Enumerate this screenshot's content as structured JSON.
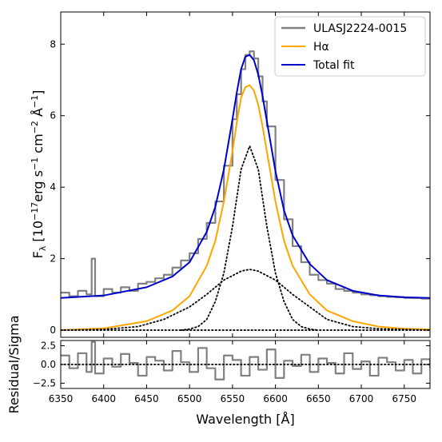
{
  "chart_data": [
    {
      "panel": "main",
      "type": "line",
      "xlabel": "",
      "ylabel_parts": {
        "F": "F",
        "F_sub": "λ",
        "open": " [10",
        "exp1": "−17",
        "erg": "erg s",
        "exp2": "−1",
        "cm": " cm",
        "exp3": "−2",
        "A": " Å",
        "exp4": "−1",
        "close": "]"
      },
      "xlim": [
        6350,
        6780
      ],
      "ylim": [
        -0.2,
        8.9
      ],
      "xticks": [
        6350,
        6400,
        6450,
        6500,
        6550,
        6600,
        6650,
        6700,
        6750
      ],
      "yticks": [
        0,
        2,
        4,
        6,
        8
      ],
      "ytick_labels": [
        "0",
        "2",
        "4",
        "6",
        "8"
      ],
      "legend": {
        "placement": "top-right",
        "entries": [
          {
            "label": "ULASJ2224-0015",
            "color": "#808080"
          },
          {
            "label": "Hα",
            "color": "#FFA500"
          },
          {
            "label": "Total fit",
            "color": "#0000CD"
          }
        ]
      },
      "series": [
        {
          "name": "ULASJ2224-0015",
          "style": "step",
          "color": "#808080",
          "x": [
            6350,
            6360,
            6370,
            6380,
            6386,
            6390,
            6400,
            6410,
            6420,
            6430,
            6440,
            6450,
            6460,
            6470,
            6480,
            6490,
            6500,
            6510,
            6520,
            6530,
            6540,
            6550,
            6555,
            6560,
            6565,
            6570,
            6575,
            6580,
            6585,
            6590,
            6600,
            6610,
            6620,
            6630,
            6640,
            6650,
            6660,
            6670,
            6680,
            6690,
            6700,
            6710,
            6720,
            6730,
            6740,
            6750,
            6760,
            6770,
            6780
          ],
          "y": [
            1.05,
            0.95,
            1.1,
            1.0,
            2.0,
            0.95,
            1.15,
            1.05,
            1.2,
            1.1,
            1.3,
            1.35,
            1.45,
            1.55,
            1.75,
            1.95,
            2.15,
            2.55,
            3.0,
            3.6,
            4.6,
            5.9,
            6.6,
            7.3,
            7.7,
            7.8,
            7.6,
            7.1,
            6.4,
            5.7,
            4.2,
            3.1,
            2.35,
            1.9,
            1.55,
            1.4,
            1.3,
            1.15,
            1.1,
            1.05,
            1.0,
            0.98,
            0.95,
            0.93,
            0.92,
            0.9,
            0.9,
            0.88,
            0.88
          ]
        },
        {
          "name": "Hα",
          "style": "line",
          "color": "#FFA500",
          "x": [
            6350,
            6400,
            6450,
            6480,
            6500,
            6520,
            6530,
            6540,
            6550,
            6555,
            6560,
            6565,
            6570,
            6575,
            6580,
            6585,
            6590,
            6600,
            6610,
            6620,
            6640,
            6660,
            6690,
            6720,
            6750,
            6780
          ],
          "y": [
            0.0,
            0.05,
            0.25,
            0.55,
            0.95,
            1.8,
            2.5,
            3.6,
            5.0,
            5.8,
            6.5,
            6.8,
            6.85,
            6.7,
            6.3,
            5.7,
            5.0,
            3.6,
            2.5,
            1.8,
            1.0,
            0.55,
            0.25,
            0.1,
            0.04,
            0.02
          ]
        },
        {
          "name": "Total fit",
          "style": "line",
          "color": "#0000CD",
          "x": [
            6350,
            6400,
            6450,
            6480,
            6500,
            6520,
            6530,
            6540,
            6550,
            6555,
            6560,
            6565,
            6570,
            6575,
            6580,
            6585,
            6590,
            6600,
            6610,
            6620,
            6640,
            6660,
            6690,
            6720,
            6750,
            6780
          ],
          "y": [
            0.9,
            0.97,
            1.2,
            1.5,
            1.9,
            2.75,
            3.45,
            4.5,
            5.9,
            6.65,
            7.3,
            7.65,
            7.7,
            7.55,
            7.15,
            6.55,
            5.85,
            4.45,
            3.35,
            2.65,
            1.85,
            1.4,
            1.1,
            0.97,
            0.92,
            0.9
          ]
        },
        {
          "name": "",
          "style": "dotted",
          "color": "#000000",
          "x": [
            6490,
            6500,
            6510,
            6520,
            6530,
            6540,
            6550,
            6560,
            6570,
            6580,
            6590,
            6600,
            6610,
            6620,
            6630,
            6640,
            6650
          ],
          "y": [
            0.0,
            0.03,
            0.1,
            0.3,
            0.8,
            1.6,
            2.9,
            4.5,
            5.15,
            4.5,
            2.9,
            1.6,
            0.8,
            0.3,
            0.1,
            0.03,
            0.0
          ]
        },
        {
          "name": "",
          "style": "dotted",
          "color": "#000000",
          "x": [
            6350,
            6400,
            6440,
            6470,
            6500,
            6520,
            6540,
            6560,
            6570,
            6580,
            6600,
            6620,
            6640,
            6660,
            6690,
            6720,
            6750,
            6780
          ],
          "y": [
            0.0,
            0.02,
            0.1,
            0.3,
            0.65,
            1.0,
            1.4,
            1.65,
            1.7,
            1.65,
            1.4,
            1.0,
            0.65,
            0.3,
            0.1,
            0.04,
            0.02,
            0.0
          ]
        },
        {
          "name": "",
          "style": "dotted",
          "color": "#000000",
          "x": [
            6350,
            6780
          ],
          "y": [
            0.0,
            0.0
          ]
        }
      ]
    },
    {
      "panel": "residual",
      "type": "line",
      "xlabel": "Wavelength [Å]",
      "ylabel": "Residual/Sigma",
      "xlim": [
        6350,
        6780
      ],
      "ylim": [
        -3.2,
        3.2
      ],
      "xticks": [
        6350,
        6400,
        6450,
        6500,
        6550,
        6600,
        6650,
        6700,
        6750
      ],
      "xtick_labels": [
        "6350",
        "6400",
        "6450",
        "6500",
        "6550",
        "6600",
        "6650",
        "6700",
        "6750"
      ],
      "yticks": [
        -2.5,
        0.0,
        2.5
      ],
      "ytick_labels": [
        "−2.5",
        "0.0",
        "2.5"
      ],
      "series": [
        {
          "name": "",
          "style": "step",
          "color": "#808080",
          "x": [
            6350,
            6360,
            6370,
            6380,
            6386,
            6390,
            6400,
            6410,
            6420,
            6430,
            6440,
            6450,
            6460,
            6470,
            6480,
            6490,
            6500,
            6510,
            6520,
            6530,
            6540,
            6550,
            6560,
            6570,
            6580,
            6590,
            6600,
            6610,
            6620,
            6630,
            6640,
            6650,
            6660,
            6670,
            6680,
            6690,
            6700,
            6710,
            6720,
            6730,
            6740,
            6750,
            6760,
            6770,
            6780
          ],
          "y": [
            1.2,
            -0.5,
            1.5,
            -1.0,
            3.0,
            -1.2,
            0.8,
            -0.3,
            1.4,
            0.2,
            -1.5,
            1.0,
            0.5,
            -0.8,
            1.8,
            0.3,
            -1.0,
            2.2,
            -0.5,
            -2.0,
            1.2,
            0.6,
            -1.5,
            1.0,
            -0.7,
            2.0,
            -1.8,
            0.5,
            -0.2,
            1.3,
            -1.0,
            0.8,
            0.2,
            -1.2,
            1.5,
            -0.6,
            0.4,
            -1.5,
            0.9,
            0.3,
            -0.8,
            0.6,
            -1.2,
            0.7,
            -0.4
          ]
        },
        {
          "name": "",
          "style": "dotted",
          "color": "#000000",
          "x": [
            6350,
            6780
          ],
          "y": [
            0.0,
            0.0
          ]
        }
      ]
    }
  ]
}
